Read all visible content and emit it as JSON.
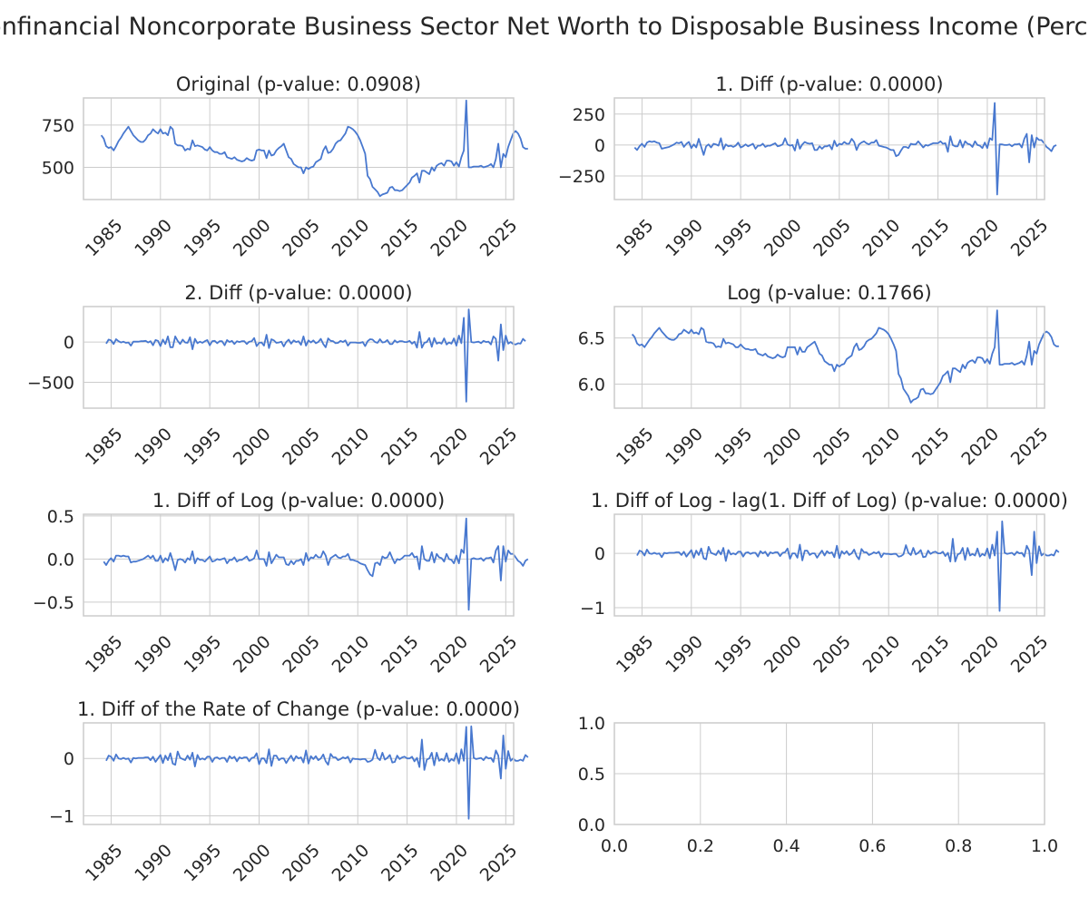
{
  "suptitle": "- Nonfinancial Noncorporate Business Sector Net Worth to Disposable Business Income (Percent)",
  "line_color": "#4878cf",
  "grid_color": "#cccccc",
  "chart_data": [
    {
      "type": "line",
      "title": "Original (p-value: 0.0908)",
      "x_start": 1984.0,
      "x_step": 0.25,
      "xticks": [
        "1985",
        "1990",
        "1995",
        "2000",
        "2005",
        "2010",
        "2015",
        "2020",
        "2025"
      ],
      "yticks": [
        "500",
        "750"
      ],
      "ylim": [
        310,
        910
      ],
      "grid": true,
      "y": [
        690,
        670,
        625,
        615,
        620,
        600,
        625,
        655,
        675,
        700,
        720,
        740,
        715,
        690,
        675,
        660,
        650,
        650,
        665,
        690,
        700,
        725,
        710,
        700,
        725,
        700,
        705,
        690,
        740,
        725,
        640,
        630,
        630,
        625,
        600,
        610,
        605,
        660,
        625,
        630,
        625,
        620,
        605,
        600,
        620,
        600,
        590,
        590,
        580,
        580,
        590,
        560,
        555,
        550,
        560,
        545,
        540,
        535,
        540,
        555,
        545,
        540,
        545,
        600,
        605,
        600,
        600,
        555,
        600,
        570,
        575,
        600,
        615,
        625,
        640,
        600,
        560,
        550,
        520,
        510,
        500,
        500,
        465,
        500,
        490,
        500,
        505,
        530,
        540,
        550,
        600,
        625,
        585,
        590,
        610,
        640,
        655,
        660,
        680,
        700,
        740,
        735,
        725,
        710,
        690,
        660,
        620,
        580,
        450,
        430,
        385,
        370,
        355,
        330,
        340,
        345,
        350,
        380,
        385,
        365,
        365,
        360,
        365,
        380,
        395,
        410,
        440,
        450,
        465,
        410,
        480,
        480,
        470,
        460,
        500,
        480,
        510,
        520,
        525,
        510,
        540,
        540,
        535,
        510,
        530,
        505,
        560,
        600,
        895,
        500,
        500,
        505,
        505,
        505,
        510,
        500,
        505,
        510,
        520,
        500,
        550,
        640,
        500,
        580,
        560,
        620,
        660,
        700,
        715,
        700,
        670,
        620,
        610,
        610
      ]
    },
    {
      "type": "line",
      "title": "1. Diff (p-value: 0.0000)",
      "x_start": 1984.25,
      "x_step": 0.25,
      "xticks": [
        "1985",
        "1990",
        "1995",
        "2000",
        "2005",
        "2010",
        "2015",
        "2020",
        "2025"
      ],
      "yticks": [
        "−250",
        "0",
        "250"
      ],
      "ylim": [
        -440,
        380
      ],
      "grid": true,
      "y": [
        -20,
        -40,
        -10,
        10,
        -15,
        20,
        30,
        25,
        30,
        20,
        15,
        -30,
        -25,
        -20,
        -15,
        -5,
        5,
        20,
        15,
        25,
        -15,
        10,
        25,
        -25,
        5,
        -20,
        50,
        -15,
        -80,
        -10,
        5,
        -20,
        10,
        5,
        -5,
        55,
        -35,
        5,
        -10,
        -5,
        -15,
        -5,
        20,
        -20,
        -10,
        5,
        -10,
        0,
        10,
        -30,
        -5,
        -5,
        10,
        -15,
        -5,
        -5,
        5,
        15,
        -10,
        -5,
        5,
        55,
        5,
        -5,
        0,
        -45,
        45,
        -30,
        5,
        25,
        15,
        10,
        15,
        -40,
        -40,
        -10,
        -30,
        -10,
        -10,
        0,
        -35,
        35,
        -10,
        10,
        5,
        25,
        10,
        10,
        50,
        25,
        -40,
        5,
        20,
        30,
        15,
        5,
        20,
        20,
        40,
        -5,
        -10,
        -15,
        -20,
        -30,
        -40,
        -40,
        -90,
        -80,
        -45,
        -15,
        -15,
        -25,
        10,
        5,
        5,
        30,
        5,
        -20,
        0,
        -5,
        5,
        15,
        15,
        15,
        30,
        10,
        15,
        -55,
        70,
        0,
        -10,
        -10,
        40,
        -20,
        30,
        10,
        5,
        -15,
        30,
        0,
        -5,
        -25,
        20,
        -25,
        55,
        40,
        340,
        -400,
        5,
        5,
        0,
        0,
        5,
        -10,
        5,
        5,
        10,
        -20,
        50,
        90,
        -140,
        80,
        -20,
        60,
        40,
        40,
        15,
        -15,
        -30,
        -50,
        -10,
        0
      ]
    },
    {
      "type": "line",
      "title": "2. Diff (p-value: 0.0000)",
      "x_start": 1984.5,
      "x_step": 0.25,
      "xticks": [
        "1985",
        "1990",
        "1995",
        "2000",
        "2005",
        "2010",
        "2015",
        "2020",
        "2025"
      ],
      "yticks": [
        "−500",
        "0"
      ],
      "ylim": [
        -820,
        440
      ],
      "grid": true,
      "y": [
        -20,
        30,
        20,
        -25,
        35,
        10,
        -5,
        5,
        -10,
        -5,
        -45,
        5,
        5,
        5,
        10,
        10,
        15,
        -5,
        10,
        -40,
        25,
        15,
        -50,
        30,
        -25,
        70,
        -65,
        -65,
        70,
        15,
        -25,
        30,
        -5,
        -10,
        60,
        -90,
        40,
        -15,
        5,
        -10,
        10,
        25,
        -40,
        10,
        15,
        -15,
        10,
        10,
        -40,
        25,
        0,
        15,
        -25,
        10,
        0,
        10,
        10,
        -25,
        5,
        10,
        50,
        -50,
        -10,
        -5,
        -45,
        90,
        -75,
        35,
        20,
        -10,
        -5,
        5,
        -55,
        0,
        30,
        -20,
        20,
        0,
        10,
        -35,
        70,
        -45,
        20,
        -5,
        20,
        -15,
        0,
        40,
        -25,
        -65,
        45,
        15,
        10,
        -15,
        -10,
        15,
        0,
        20,
        -45,
        -5,
        -5,
        -5,
        -10,
        -10,
        0,
        -50,
        10,
        35,
        30,
        0,
        -10,
        35,
        -5,
        0,
        25,
        -25,
        -25,
        20,
        -5,
        10,
        10,
        0,
        0,
        15,
        -20,
        5,
        -70,
        125,
        -70,
        -10,
        0,
        50,
        -60,
        50,
        -20,
        -5,
        -20,
        45,
        -30,
        -5,
        -20,
        45,
        -45,
        80,
        -15,
        300,
        -740,
        405,
        0,
        -5,
        0,
        5,
        -15,
        15,
        0,
        5,
        -30,
        70,
        40,
        -230,
        220,
        -100,
        80,
        -20,
        0,
        -25,
        -30,
        -15,
        -20,
        40,
        10
      ]
    },
    {
      "type": "line",
      "title": "Log (p-value: 0.1766)",
      "x_start": 1984.0,
      "x_step": 0.25,
      "xticks": [
        "1985",
        "1990",
        "1995",
        "2000",
        "2005",
        "2010",
        "2015",
        "2020",
        "2025"
      ],
      "yticks": [
        "6.0",
        "6.5"
      ],
      "ylim": [
        5.74,
        6.84
      ],
      "grid": true,
      "y": [
        6.54,
        6.51,
        6.44,
        6.42,
        6.43,
        6.4,
        6.44,
        6.48,
        6.51,
        6.55,
        6.58,
        6.61,
        6.57,
        6.54,
        6.51,
        6.49,
        6.48,
        6.48,
        6.5,
        6.54,
        6.55,
        6.59,
        6.57,
        6.55,
        6.59,
        6.55,
        6.56,
        6.54,
        6.61,
        6.59,
        6.46,
        6.45,
        6.45,
        6.44,
        6.4,
        6.41,
        6.4,
        6.49,
        6.44,
        6.45,
        6.44,
        6.43,
        6.4,
        6.4,
        6.43,
        6.4,
        6.38,
        6.38,
        6.37,
        6.37,
        6.38,
        6.33,
        6.32,
        6.31,
        6.33,
        6.3,
        6.29,
        6.28,
        6.29,
        6.32,
        6.3,
        6.29,
        6.3,
        6.4,
        6.4,
        6.4,
        6.4,
        6.32,
        6.4,
        6.35,
        6.35,
        6.4,
        6.42,
        6.44,
        6.46,
        6.4,
        6.33,
        6.31,
        6.25,
        6.23,
        6.21,
        6.21,
        6.14,
        6.21,
        6.19,
        6.21,
        6.22,
        6.27,
        6.29,
        6.31,
        6.4,
        6.44,
        6.37,
        6.38,
        6.41,
        6.46,
        6.48,
        6.49,
        6.52,
        6.55,
        6.61,
        6.6,
        6.59,
        6.57,
        6.54,
        6.49,
        6.43,
        6.36,
        6.11,
        6.06,
        5.95,
        5.91,
        5.87,
        5.8,
        5.83,
        5.84,
        5.86,
        5.94,
        5.95,
        5.9,
        5.9,
        5.89,
        5.9,
        5.94,
        5.98,
        6.02,
        6.09,
        6.11,
        6.14,
        6.02,
        6.17,
        6.17,
        6.15,
        6.13,
        6.21,
        6.17,
        6.23,
        6.25,
        6.26,
        6.23,
        6.29,
        6.29,
        6.28,
        6.23,
        6.27,
        6.22,
        6.33,
        6.4,
        6.8,
        6.21,
        6.21,
        6.22,
        6.22,
        6.22,
        6.23,
        6.21,
        6.22,
        6.23,
        6.25,
        6.21,
        6.31,
        6.46,
        6.21,
        6.36,
        6.33,
        6.43,
        6.49,
        6.55,
        6.57,
        6.55,
        6.51,
        6.43,
        6.41,
        6.41
      ]
    },
    {
      "type": "line",
      "title": "1. Diff of Log (p-value: 0.0000)",
      "x_start": 1984.25,
      "x_step": 0.25,
      "xticks": [
        "1985",
        "1990",
        "1995",
        "2000",
        "2005",
        "2010",
        "2015",
        "2020",
        "2025"
      ],
      "yticks": [
        "−0.5",
        "0.0",
        "0.5"
      ],
      "ylim": [
        -0.66,
        0.52
      ],
      "grid": true,
      "y": [
        -0.03,
        -0.07,
        -0.02,
        0.01,
        -0.03,
        0.04,
        0.04,
        0.03,
        0.04,
        0.03,
        0.03,
        -0.04,
        -0.03,
        -0.03,
        -0.02,
        -0.01,
        0.0,
        0.02,
        0.04,
        0.01,
        0.04,
        -0.02,
        -0.02,
        0.04,
        -0.04,
        0.01,
        -0.02,
        0.07,
        -0.02,
        -0.13,
        -0.01,
        0.0,
        -0.01,
        -0.04,
        0.01,
        -0.01,
        0.09,
        -0.05,
        0.01,
        -0.01,
        -0.01,
        -0.03,
        0.0,
        0.03,
        -0.03,
        -0.02,
        0.0,
        -0.01,
        0.0,
        0.01,
        -0.05,
        -0.01,
        -0.01,
        0.02,
        -0.03,
        -0.01,
        -0.01,
        0.01,
        0.03,
        -0.02,
        -0.01,
        0.01,
        0.1,
        0.0,
        0.0,
        0.0,
        -0.08,
        0.08,
        -0.05,
        0.0,
        0.05,
        0.02,
        0.02,
        0.02,
        -0.06,
        -0.07,
        -0.02,
        -0.06,
        -0.02,
        -0.02,
        0.0,
        -0.07,
        0.07,
        -0.02,
        0.02,
        0.01,
        0.05,
        0.02,
        0.02,
        0.09,
        0.04,
        -0.07,
        0.01,
        0.03,
        0.05,
        0.02,
        0.01,
        0.03,
        0.03,
        0.06,
        -0.01,
        -0.01,
        -0.02,
        -0.03,
        -0.05,
        -0.06,
        -0.07,
        -0.13,
        -0.18,
        -0.2,
        -0.05,
        -0.04,
        -0.07,
        0.03,
        0.01,
        0.02,
        0.08,
        0.01,
        -0.05,
        0.0,
        -0.01,
        0.01,
        0.04,
        0.04,
        0.04,
        0.07,
        0.02,
        0.03,
        -0.12,
        0.15,
        0.0,
        -0.02,
        -0.02,
        0.08,
        -0.04,
        0.06,
        0.02,
        0.01,
        -0.03,
        0.06,
        0.0,
        -0.01,
        -0.05,
        0.04,
        -0.05,
        0.11,
        0.07,
        0.47,
        -0.59,
        0.0,
        0.01,
        0.0,
        0.0,
        0.01,
        -0.02,
        0.01,
        0.01,
        0.02,
        -0.04,
        0.1,
        0.15,
        -0.25,
        0.15,
        -0.03,
        0.1,
        0.06,
        0.06,
        0.02,
        -0.02,
        -0.04,
        -0.08,
        -0.02,
        0.0
      ]
    },
    {
      "type": "line",
      "title": "1. Diff of Log - lag(1. Diff of Log) (p-value: 0.0000)",
      "x_start": 1984.5,
      "x_step": 0.25,
      "xticks": [
        "1985",
        "1990",
        "1995",
        "2000",
        "2005",
        "2010",
        "2015",
        "2020",
        "2025"
      ],
      "yticks": [
        "−1",
        "0"
      ],
      "ylim": [
        -1.15,
        0.72
      ],
      "grid": true,
      "y": [
        -0.04,
        0.05,
        0.03,
        -0.04,
        0.07,
        0.0,
        -0.01,
        0.01,
        -0.01,
        0.0,
        -0.07,
        0.01,
        0.0,
        0.01,
        0.01,
        0.01,
        0.02,
        0.02,
        -0.03,
        0.03,
        -0.06,
        0.0,
        0.06,
        -0.08,
        0.05,
        -0.03,
        0.09,
        -0.09,
        -0.11,
        0.12,
        0.01,
        -0.01,
        -0.03,
        0.05,
        -0.02,
        0.1,
        -0.14,
        0.06,
        -0.02,
        0.0,
        -0.02,
        0.03,
        0.03,
        -0.06,
        0.01,
        0.02,
        -0.01,
        0.01,
        0.01,
        -0.06,
        0.04,
        0.0,
        0.03,
        -0.05,
        0.02,
        0.0,
        0.02,
        0.02,
        -0.05,
        0.01,
        0.02,
        0.09,
        -0.1,
        0.0,
        0.0,
        -0.08,
        0.16,
        -0.13,
        0.05,
        0.05,
        -0.03,
        0.0,
        0.0,
        -0.08,
        -0.01,
        0.05,
        -0.04,
        0.04,
        0.0,
        0.02,
        -0.07,
        0.14,
        -0.09,
        0.04,
        -0.01,
        0.04,
        -0.03,
        0.0,
        0.07,
        -0.05,
        -0.11,
        0.08,
        0.02,
        0.02,
        -0.03,
        -0.01,
        0.02,
        0.0,
        0.03,
        -0.07,
        0.0,
        -0.01,
        -0.01,
        -0.02,
        -0.01,
        -0.01,
        -0.06,
        -0.05,
        -0.02,
        0.15,
        0.01,
        -0.03,
        0.1,
        -0.02,
        0.01,
        0.06,
        -0.07,
        -0.06,
        0.05,
        -0.01,
        0.02,
        0.03,
        0.0,
        0.0,
        0.03,
        -0.05,
        0.01,
        -0.15,
        0.27,
        -0.15,
        -0.02,
        0.0,
        0.1,
        -0.12,
        0.1,
        -0.04,
        -0.01,
        -0.04,
        0.09,
        -0.06,
        -0.01,
        -0.04,
        0.09,
        -0.09,
        0.16,
        -0.04,
        0.4,
        -1.06,
        0.59,
        0.01,
        -0.01,
        0.0,
        0.01,
        -0.03,
        0.03,
        0.0,
        0.01,
        -0.06,
        0.14,
        0.05,
        -0.4,
        0.4,
        -0.18,
        0.13,
        -0.04,
        0.0,
        -0.04,
        -0.04,
        -0.02,
        -0.04,
        0.06,
        0.02
      ]
    },
    {
      "type": "line",
      "title": "1. Diff of the Rate of Change (p-value: 0.0000)",
      "x_start": 1984.5,
      "x_step": 0.25,
      "xticks": [
        "1985",
        "1990",
        "1995",
        "2000",
        "2005",
        "2010",
        "2015",
        "2020",
        "2025"
      ],
      "yticks": [
        "−1",
        "0"
      ],
      "ylim": [
        -1.15,
        0.62
      ],
      "grid": true,
      "y": [
        -0.04,
        0.05,
        0.03,
        -0.04,
        0.07,
        0.0,
        -0.01,
        0.01,
        -0.01,
        0.0,
        -0.07,
        0.01,
        0.0,
        0.01,
        0.01,
        0.01,
        0.02,
        0.02,
        -0.03,
        0.03,
        -0.06,
        0.0,
        0.06,
        -0.08,
        0.05,
        -0.03,
        0.09,
        -0.09,
        -0.11,
        0.12,
        0.01,
        -0.01,
        -0.03,
        0.05,
        -0.02,
        0.1,
        -0.14,
        0.06,
        -0.02,
        0.0,
        -0.02,
        0.03,
        0.03,
        -0.06,
        0.01,
        0.02,
        -0.01,
        0.01,
        0.01,
        -0.06,
        0.04,
        0.0,
        0.03,
        -0.05,
        0.02,
        0.0,
        0.02,
        0.02,
        -0.05,
        0.01,
        0.02,
        0.09,
        -0.1,
        0.0,
        0.0,
        -0.08,
        0.16,
        -0.13,
        0.05,
        0.05,
        -0.03,
        0.0,
        0.0,
        -0.08,
        -0.01,
        0.05,
        -0.04,
        0.04,
        0.0,
        0.02,
        -0.07,
        0.14,
        -0.09,
        0.04,
        -0.01,
        0.04,
        -0.03,
        0.0,
        0.07,
        -0.05,
        -0.11,
        0.08,
        0.02,
        0.02,
        -0.03,
        -0.01,
        0.02,
        0.0,
        0.03,
        -0.07,
        0.0,
        -0.01,
        -0.01,
        -0.02,
        -0.01,
        -0.01,
        -0.06,
        -0.05,
        -0.02,
        0.15,
        0.01,
        -0.03,
        0.1,
        -0.02,
        0.01,
        0.06,
        -0.07,
        -0.06,
        0.05,
        -0.01,
        0.02,
        0.03,
        0.0,
        0.0,
        0.03,
        -0.05,
        0.01,
        -0.15,
        0.33,
        -0.2,
        -0.02,
        0.0,
        0.1,
        -0.12,
        0.1,
        -0.04,
        -0.01,
        -0.04,
        0.09,
        -0.06,
        -0.01,
        -0.04,
        0.09,
        -0.09,
        0.16,
        -0.04,
        0.55,
        -1.05,
        0.56,
        0.01,
        -0.01,
        0.0,
        0.01,
        -0.03,
        0.03,
        0.0,
        0.01,
        -0.06,
        0.14,
        0.05,
        -0.35,
        0.4,
        -0.18,
        0.13,
        -0.04,
        0.0,
        -0.04,
        -0.04,
        -0.02,
        -0.04,
        0.06,
        0.02
      ]
    },
    {
      "type": "line",
      "title": "",
      "xticks": [
        "0.0",
        "0.2",
        "0.4",
        "0.6",
        "0.8",
        "1.0"
      ],
      "yticks": [
        "0.0",
        "0.5",
        "1.0"
      ],
      "xlim": [
        0,
        1
      ],
      "ylim": [
        0,
        1
      ],
      "grid": true,
      "y": []
    }
  ]
}
